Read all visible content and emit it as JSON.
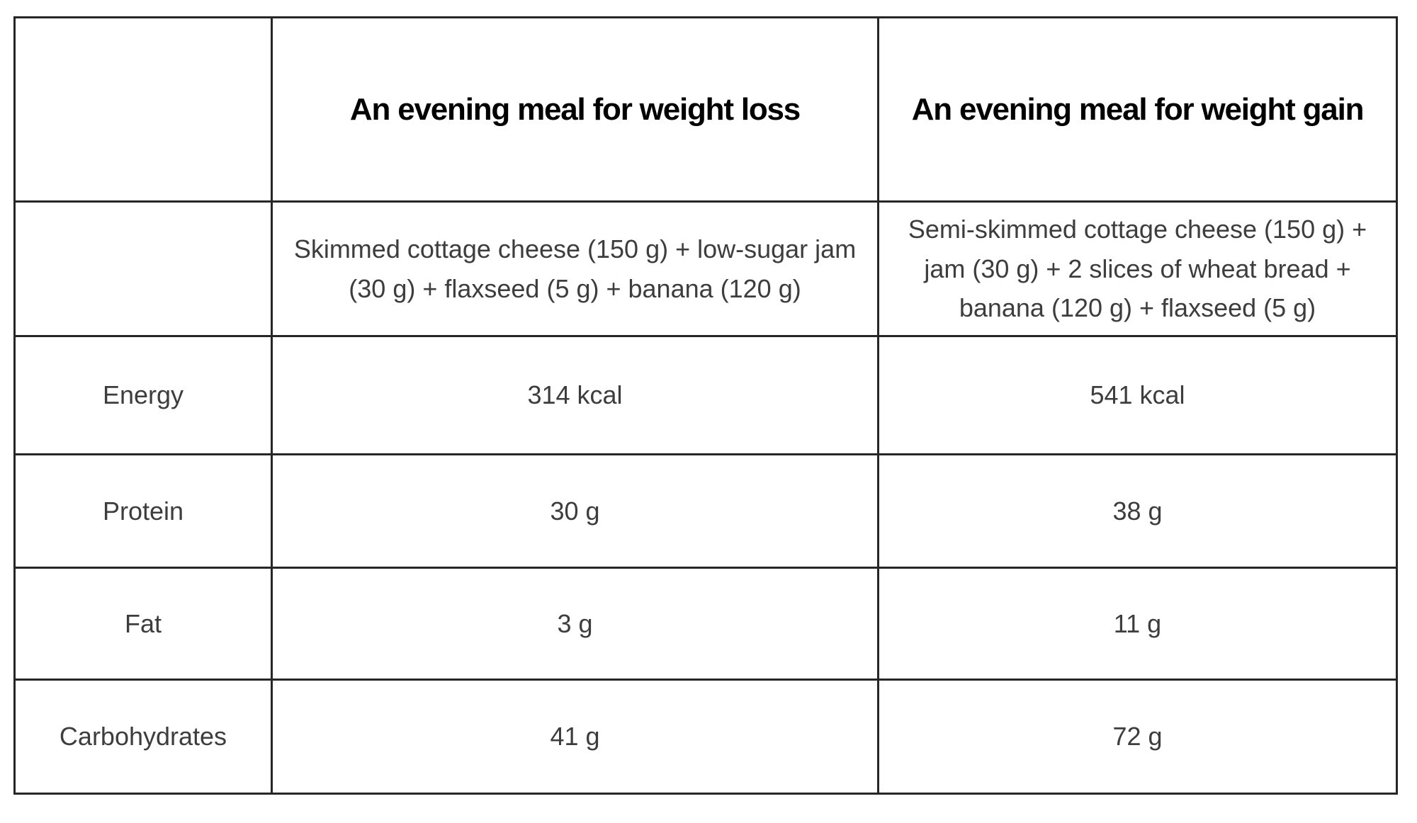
{
  "table": {
    "columns": {
      "loss": {
        "header": "An evening meal for weight loss",
        "description": "Skimmed cottage cheese (150 g) + low-sugar jam (30 g) + flaxseed (5 g) + banana (120 g)"
      },
      "gain": {
        "header": "An evening meal for weight gain",
        "description": "Semi-skimmed cottage cheese (150 g) + jam (30 g) + 2 slices of wheat bread + banana (120 g) + flaxseed (5 g)"
      }
    },
    "rows": [
      {
        "label": "Energy",
        "loss": "314 kcal",
        "gain": "541 kcal"
      },
      {
        "label": "Protein",
        "loss": "30 g",
        "gain": "38 g"
      },
      {
        "label": "Fat",
        "loss": "3 g",
        "gain": "11 g"
      },
      {
        "label": "Carbohydrates",
        "loss": "41 g",
        "gain": "72 g"
      }
    ]
  },
  "colors": {
    "background": "#ffffff",
    "border": "#262626",
    "header_text": "#000000",
    "body_text": "#3d3d3d"
  }
}
